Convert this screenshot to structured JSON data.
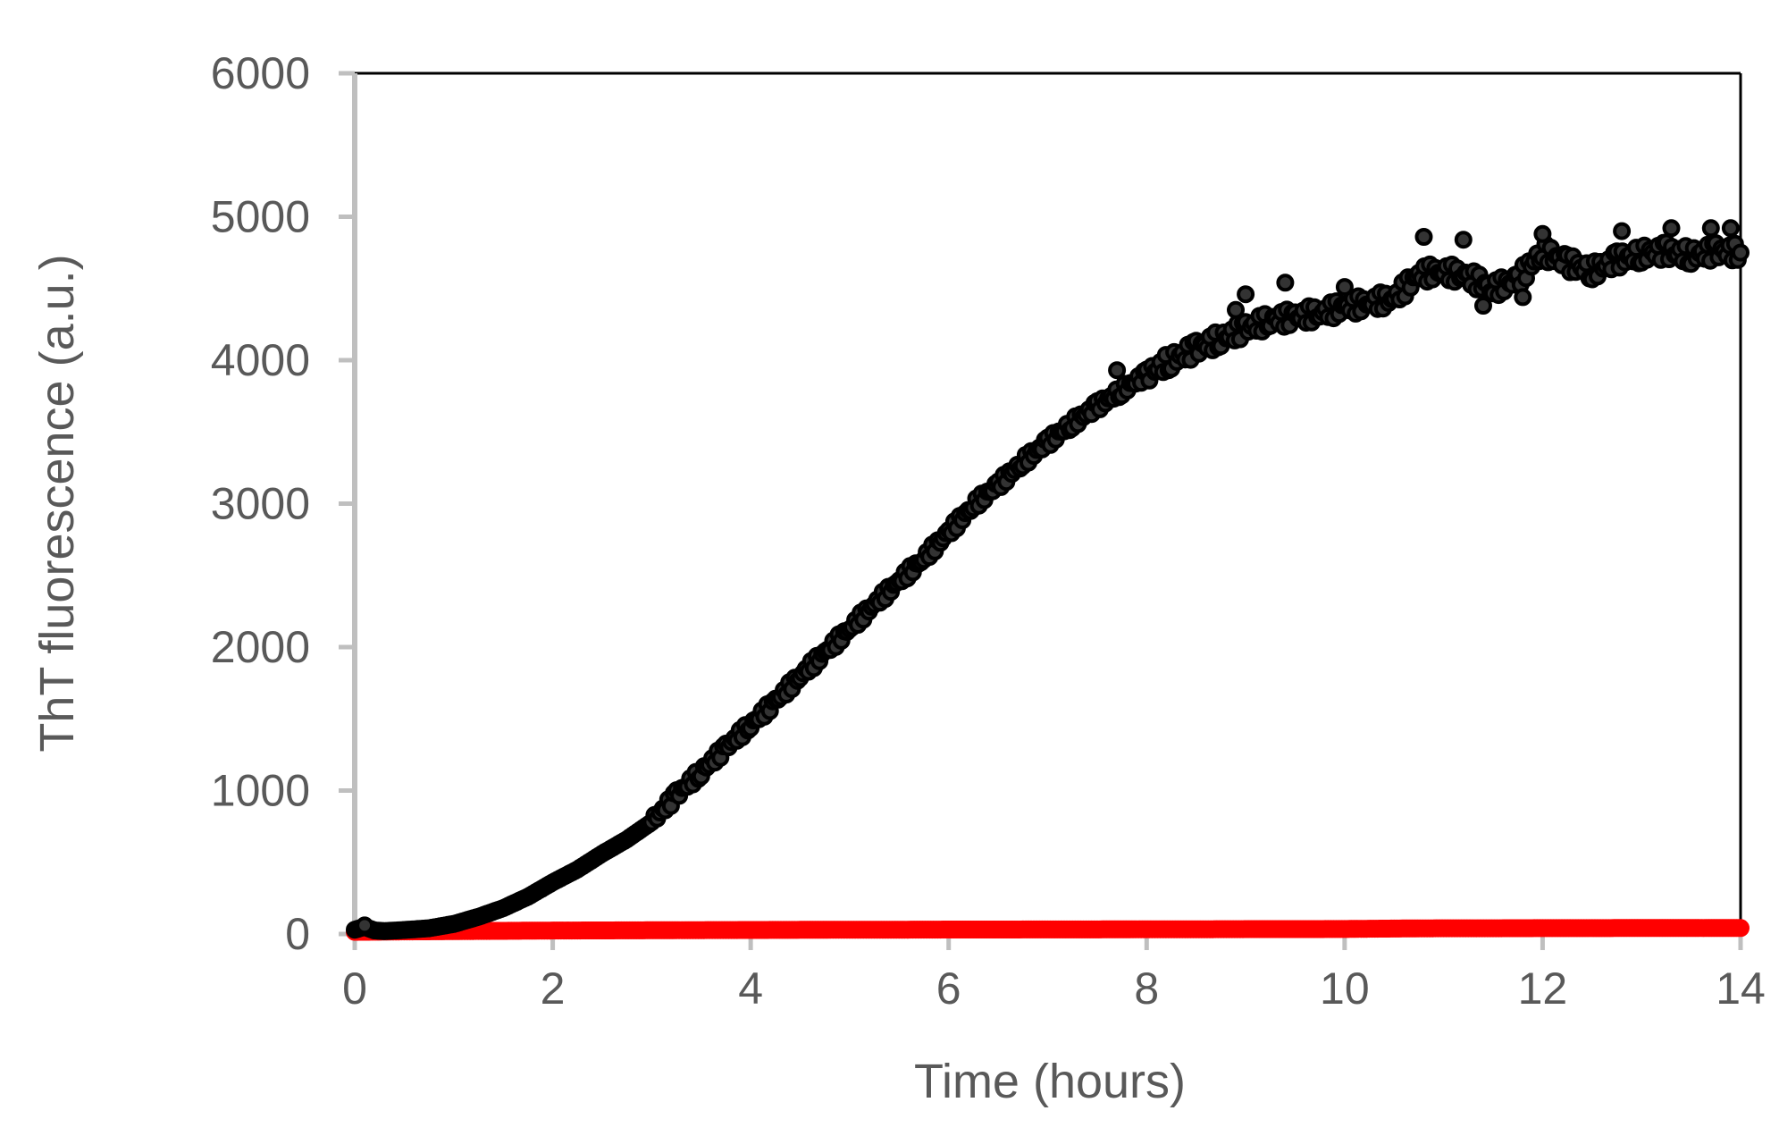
{
  "chart_data": {
    "type": "scatter",
    "xlabel": "Time (hours)",
    "ylabel": "ThT fluorescence (a.u.)",
    "xlim": [
      0,
      14
    ],
    "ylim": [
      0,
      6000
    ],
    "x_ticks": [
      0,
      2,
      4,
      6,
      8,
      10,
      12,
      14
    ],
    "y_ticks": [
      0,
      1000,
      2000,
      3000,
      4000,
      5000,
      6000
    ],
    "x_tick_labels": [
      "0",
      "2",
      "4",
      "6",
      "8",
      "10",
      "12",
      "14"
    ],
    "y_tick_labels": [
      "0",
      "1000",
      "2000",
      "3000",
      "4000",
      "5000",
      "6000"
    ],
    "grid": false,
    "legend": "none",
    "series": [
      {
        "color": "#ff0000",
        "x": [
          0,
          0.5,
          1,
          1.5,
          2,
          2.5,
          3,
          3.5,
          4,
          4.5,
          5,
          5.5,
          6,
          6.5,
          7,
          7.5,
          8,
          8.5,
          9,
          9.5,
          10,
          10.5,
          11,
          11.5,
          12,
          12.5,
          13,
          13.5,
          14
        ],
        "y": [
          15,
          18,
          20,
          22,
          24,
          25,
          26,
          27,
          28,
          29,
          30,
          30,
          31,
          31,
          32,
          32,
          33,
          33,
          34,
          34,
          35,
          38,
          40,
          40,
          41,
          41,
          42,
          42,
          42
        ]
      },
      {
        "color": "#000000",
        "x": [
          0,
          0.1,
          0.2,
          0.3,
          0.5,
          0.75,
          1,
          1.25,
          1.5,
          1.75,
          2,
          2.25,
          2.5,
          2.75,
          3,
          3.25,
          3.5,
          3.75,
          4,
          4.25,
          4.5,
          4.75,
          5,
          5.25,
          5.5,
          5.75,
          6,
          6.25,
          6.5,
          6.75,
          7,
          7.25,
          7.5,
          7.75,
          8,
          8.25,
          8.5,
          8.75,
          9,
          9.25,
          9.5,
          9.75,
          10,
          10.25,
          10.5,
          10.75,
          11,
          11.25,
          11.5,
          11.75,
          12,
          12.25,
          12.5,
          12.75,
          13,
          13.25,
          13.5,
          13.75,
          14
        ],
        "y": [
          30,
          50,
          25,
          20,
          28,
          40,
          70,
          120,
          180,
          260,
          360,
          450,
          560,
          660,
          780,
          970,
          1130,
          1300,
          1460,
          1620,
          1800,
          1960,
          2130,
          2300,
          2460,
          2620,
          2800,
          2990,
          3130,
          3290,
          3430,
          3560,
          3680,
          3790,
          3900,
          4000,
          4080,
          4150,
          4220,
          4280,
          4300,
          4330,
          4370,
          4400,
          4430,
          4600,
          4620,
          4580,
          4500,
          4560,
          4760,
          4680,
          4620,
          4700,
          4740,
          4760,
          4730,
          4760,
          4750
        ]
      },
      {
        "color": "#000000",
        "x": [
          0.1,
          7.7,
          8.9,
          9.0,
          9.4,
          10.0,
          10.8,
          11.2,
          11.4,
          11.8,
          12.0,
          12.8,
          13.3,
          13.7,
          13.9
        ],
        "y": [
          60,
          3930,
          4350,
          4460,
          4540,
          4510,
          4860,
          4840,
          4380,
          4440,
          4880,
          4900,
          4920,
          4920,
          4920
        ]
      }
    ]
  }
}
